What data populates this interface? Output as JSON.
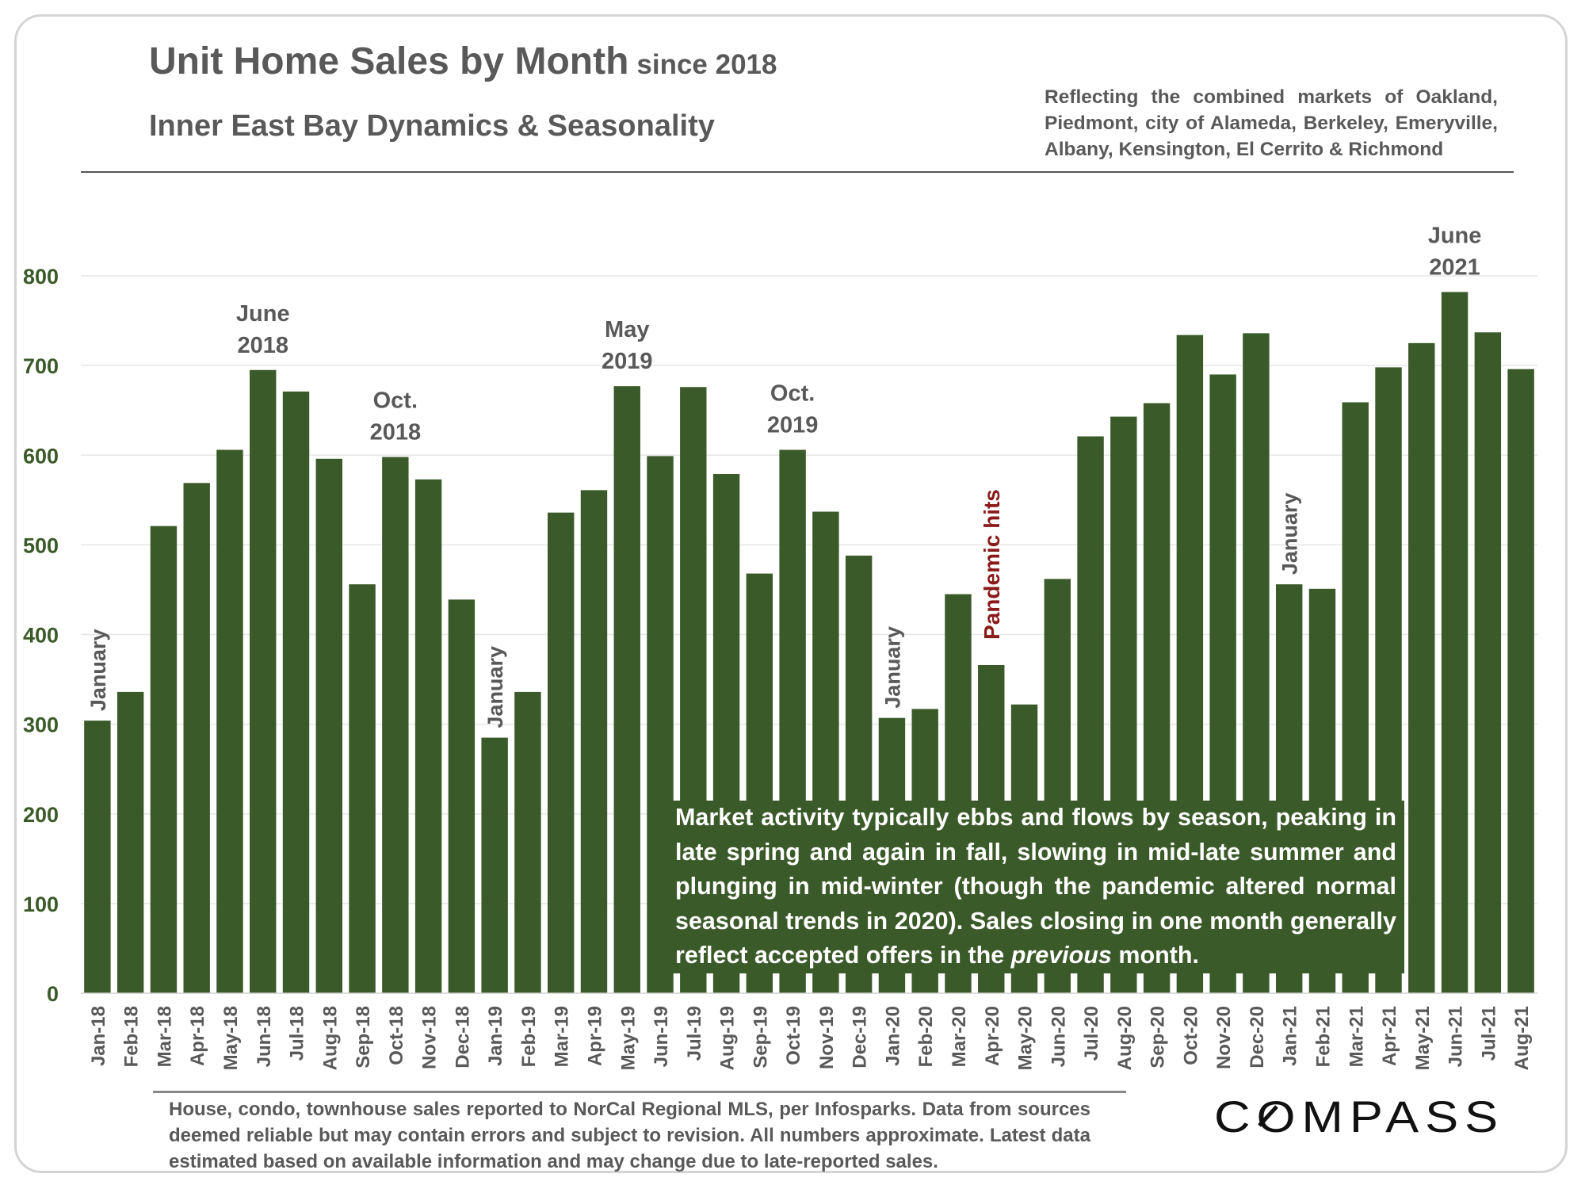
{
  "header": {
    "title": "Unit Home Sales by Month",
    "title_suffix": "since 2018",
    "subtitle": "Inner East Bay Dynamics & Seasonality",
    "reflecting": "Reflecting the combined markets of Oakland, Piedmont, city of Alameda, Berkeley, Emeryville, Albany, Kensington, El Cerrito & Richmond"
  },
  "note": {
    "before": "Market activity typically ebbs and flows by season, peaking in late spring and again in fall, slowing in mid-late summer and plunging in mid-winter (though the pandemic altered normal seasonal trends in 2020). Sales closing in one month generally reflect accepted offers in the ",
    "emphasis": "previous",
    "after": " month."
  },
  "footnote": "House, condo, townhouse sales reported to NorCal Regional MLS, per Infosparks. Data from sources deemed reliable but may contain errors and subject to revision. All numbers approximate. Latest data estimated based on available information and may change due to late-reported sales.",
  "logo": "COMPASS",
  "colors": {
    "bar": "#3b5a29",
    "axis_text": "#3b5a29",
    "label_text": "#595959",
    "pandemic": "#8b1a1a",
    "grid": "#e6e6e6"
  },
  "chart_data": {
    "type": "bar",
    "title": "Unit Home Sales by Month",
    "ylim": [
      0,
      800
    ],
    "yticks": [
      0,
      100,
      200,
      300,
      400,
      500,
      600,
      700,
      800
    ],
    "grid": true,
    "categories": [
      "Jan-18",
      "Feb-18",
      "Mar-18",
      "Apr-18",
      "May-18",
      "Jun-18",
      "Jul-18",
      "Aug-18",
      "Sep-18",
      "Oct-18",
      "Nov-18",
      "Dec-18",
      "Jan-19",
      "Feb-19",
      "Mar-19",
      "Apr-19",
      "May-19",
      "Jun-19",
      "Jul-19",
      "Aug-19",
      "Sep-19",
      "Oct-19",
      "Nov-19",
      "Dec-19",
      "Jan-20",
      "Feb-20",
      "Mar-20",
      "Apr-20",
      "May-20",
      "Jun-20",
      "Jul-20",
      "Aug-20",
      "Sep-20",
      "Oct-20",
      "Nov-20",
      "Dec-20",
      "Jan-21",
      "Feb-21",
      "Mar-21",
      "Apr-21",
      "May-21",
      "Jun-21",
      "Jul-21",
      "Aug-21"
    ],
    "values": [
      304,
      336,
      521,
      569,
      606,
      695,
      671,
      596,
      456,
      598,
      573,
      439,
      285,
      336,
      536,
      561,
      677,
      599,
      676,
      579,
      468,
      606,
      537,
      488,
      307,
      317,
      445,
      366,
      322,
      462,
      621,
      643,
      658,
      734,
      690,
      736,
      456,
      451,
      659,
      698,
      725,
      782,
      737,
      696
    ],
    "annotations": [
      {
        "index": 5,
        "text": [
          "June",
          "2018"
        ],
        "kind": "above"
      },
      {
        "index": 9,
        "text": [
          "Oct.",
          "2018"
        ],
        "kind": "above"
      },
      {
        "index": 16,
        "text": [
          "May",
          "2019"
        ],
        "kind": "above"
      },
      {
        "index": 21,
        "text": [
          "Oct.",
          "2019"
        ],
        "kind": "above"
      },
      {
        "index": 41,
        "text": [
          "June",
          "2021"
        ],
        "kind": "above"
      },
      {
        "index": 0,
        "text": [
          "January"
        ],
        "kind": "vertical"
      },
      {
        "index": 12,
        "text": [
          "January"
        ],
        "kind": "vertical"
      },
      {
        "index": 24,
        "text": [
          "January"
        ],
        "kind": "vertical"
      },
      {
        "index": 36,
        "text": [
          "January"
        ],
        "kind": "vertical"
      },
      {
        "index": 27,
        "text": [
          "Pandemic hits"
        ],
        "kind": "pandemic"
      }
    ]
  }
}
